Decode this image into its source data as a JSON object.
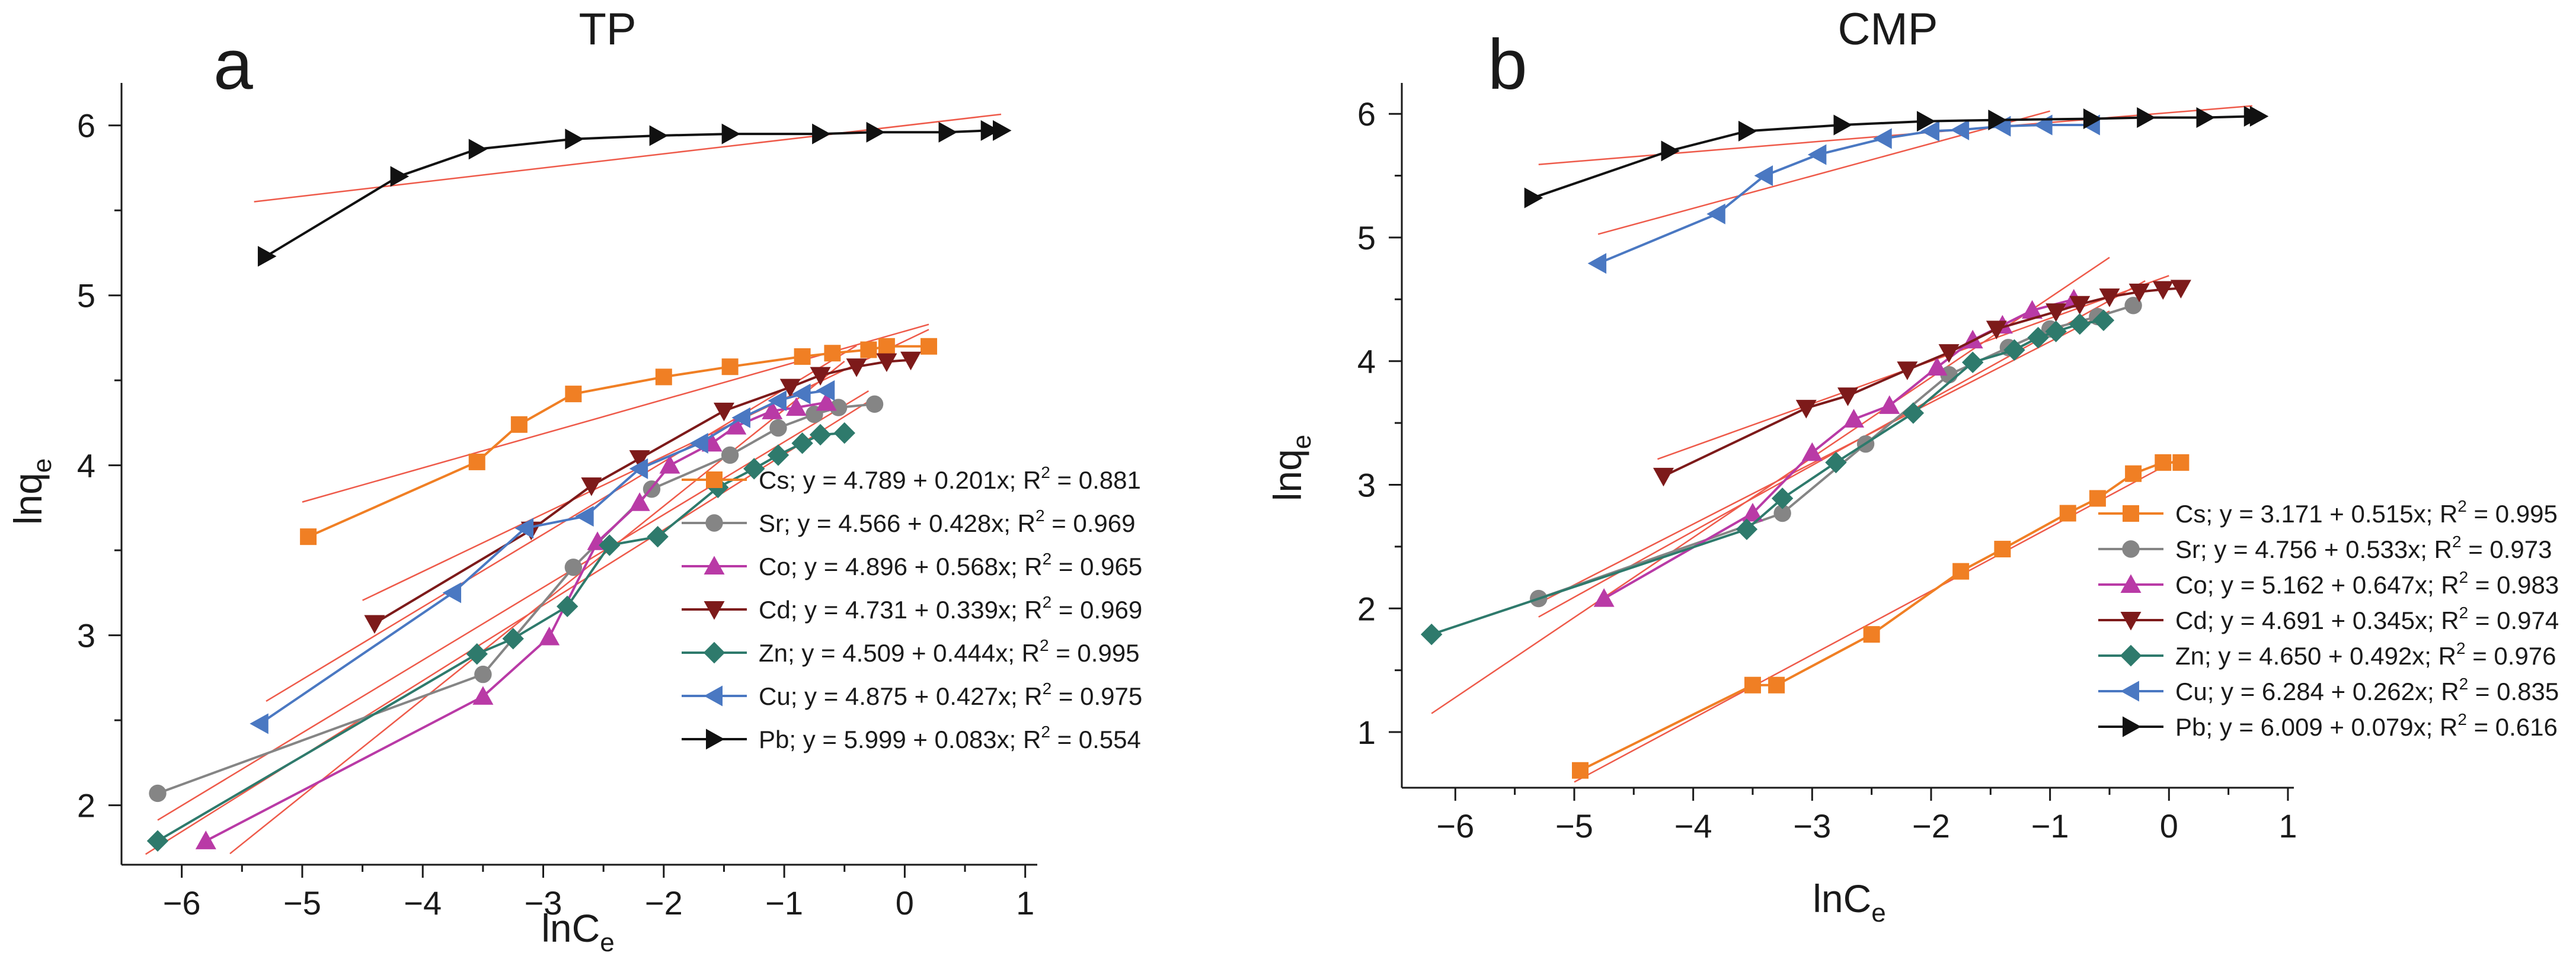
{
  "chart_data": [
    {
      "type": "line",
      "panel_letter": "a",
      "title": "TP",
      "xlabel": "lnC",
      "xlabel_sub": "e",
      "ylabel": "lnq",
      "ylabel_sub": "e",
      "xlim": [
        -6.5,
        1.1
      ],
      "ylim": [
        1.65,
        6.25
      ],
      "xticks": [
        -6,
        -5,
        -4,
        -3,
        -2,
        -1,
        0,
        1
      ],
      "xtick_labels": [
        "−6",
        "−5",
        "−4",
        "−3",
        "−2",
        "−1",
        "0",
        "1"
      ],
      "yticks": [
        2,
        3,
        4,
        5,
        6
      ],
      "ytick_labels": [
        "2",
        "3",
        "4",
        "5",
        "6"
      ],
      "legend_position": "lower-right",
      "series": [
        {
          "name": "Cs",
          "color": "#f07f24",
          "marker": "square",
          "label": "Cs; y = 4.789 + 0.201x; R",
          "label_sup": "2",
          "label_end": " = 0.881",
          "x": [
            -4.95,
            -3.55,
            -3.2,
            -2.75,
            -2.0,
            -1.45,
            -0.85,
            -0.6,
            -0.3,
            -0.15,
            0.2
          ],
          "y": [
            3.58,
            4.02,
            4.24,
            4.42,
            4.52,
            4.58,
            4.64,
            4.66,
            4.68,
            4.7,
            4.7
          ],
          "fit": {
            "intercept": 4.789,
            "slope": 0.201,
            "x_range": [
              -5.0,
              0.2
            ]
          }
        },
        {
          "name": "Sr",
          "color": "#858585",
          "marker": "circle",
          "label": "Sr; y = 4.566 + 0.428x; R",
          "label_sup": "2",
          "label_end": " = 0.969",
          "x": [
            -6.2,
            -3.5,
            -2.75,
            -2.1,
            -1.45,
            -1.05,
            -0.75,
            -0.55,
            -0.25
          ],
          "y": [
            2.07,
            2.77,
            3.4,
            3.86,
            4.06,
            4.22,
            4.3,
            4.34,
            4.36
          ],
          "fit": {
            "intercept": 4.566,
            "slope": 0.428,
            "x_range": [
              -6.2,
              -0.3
            ]
          }
        },
        {
          "name": "Co",
          "color": "#b93aa6",
          "marker": "triangle-up",
          "label": "Co; y = 4.896 + 0.568x; R",
          "label_sup": "2",
          "label_end": " = 0.965",
          "x": [
            -5.8,
            -3.5,
            -2.95,
            -2.55,
            -2.2,
            -1.95,
            -1.6,
            -1.4,
            -1.1,
            -0.9,
            -0.65
          ],
          "y": [
            1.79,
            2.64,
            2.99,
            3.55,
            3.78,
            4.0,
            4.13,
            4.23,
            4.32,
            4.34,
            4.37
          ],
          "fit": {
            "intercept": 4.896,
            "slope": 0.568,
            "x_range": [
              -5.6,
              -0.5
            ]
          }
        },
        {
          "name": "Cd",
          "color": "#7d1a1a",
          "marker": "triangle-down",
          "label": "Cd; y = 4.731 + 0.339x; R",
          "label_sup": "2",
          "label_end": " = 0.969",
          "x": [
            -4.4,
            -3.1,
            -2.6,
            -2.2,
            -1.5,
            -0.95,
            -0.7,
            -0.4,
            -0.15,
            0.05
          ],
          "y": [
            3.07,
            3.62,
            3.88,
            4.04,
            4.32,
            4.46,
            4.53,
            4.58,
            4.61,
            4.62
          ],
          "fit": {
            "intercept": 4.731,
            "slope": 0.339,
            "x_range": [
              -4.5,
              0.2
            ]
          }
        },
        {
          "name": "Zn",
          "color": "#2e7a6c",
          "marker": "diamond",
          "label": "Zn; y = 4.509 + 0.444x; R",
          "label_sup": "2",
          "label_end": " = 0.995",
          "x": [
            -6.2,
            -3.55,
            -3.25,
            -2.8,
            -2.45,
            -2.05,
            -1.55,
            -1.25,
            -1.05,
            -0.85,
            -0.7,
            -0.5
          ],
          "y": [
            1.79,
            2.89,
            2.98,
            3.17,
            3.53,
            3.58,
            3.87,
            3.98,
            4.06,
            4.13,
            4.18,
            4.19
          ],
          "fit": {
            "intercept": 4.509,
            "slope": 0.444,
            "x_range": [
              -6.3,
              -0.3
            ]
          }
        },
        {
          "name": "Cu",
          "color": "#4a78c2",
          "marker": "triangle-left",
          "label": "Cu; y = 4.875 + 0.427x; R",
          "label_sup": "2",
          "label_end": " = 0.975",
          "x": [
            -5.35,
            -3.75,
            -3.15,
            -2.65,
            -2.2,
            -1.7,
            -1.35,
            -1.05,
            -0.85,
            -0.65
          ],
          "y": [
            2.48,
            3.25,
            3.63,
            3.7,
            3.98,
            4.13,
            4.28,
            4.38,
            4.42,
            4.44
          ],
          "fit": {
            "intercept": 4.875,
            "slope": 0.427,
            "x_range": [
              -5.3,
              -0.4
            ]
          }
        },
        {
          "name": "Pb",
          "color": "#111111",
          "marker": "triangle-right",
          "label": "Pb; y = 5.999 + 0.083x; R",
          "label_sup": "2",
          "label_end": " = 0.554",
          "x": [
            -5.3,
            -4.2,
            -3.55,
            -2.75,
            -2.05,
            -1.45,
            -0.7,
            -0.25,
            0.35,
            0.7,
            0.8
          ],
          "y": [
            5.23,
            5.7,
            5.86,
            5.92,
            5.94,
            5.95,
            5.95,
            5.96,
            5.96,
            5.97,
            5.97
          ],
          "fit": {
            "intercept": 5.999,
            "slope": 0.083,
            "x_range": [
              -5.4,
              0.8
            ]
          }
        }
      ]
    },
    {
      "type": "line",
      "panel_letter": "b",
      "title": "CMP",
      "xlabel": "lnC",
      "xlabel_sub": "e",
      "ylabel": "lnq",
      "ylabel_sub": "e",
      "xlim": [
        -6.45,
        1.05
      ],
      "ylim": [
        0.55,
        6.25
      ],
      "xticks": [
        -6,
        -5,
        -4,
        -3,
        -2,
        -1,
        0,
        1
      ],
      "xtick_labels": [
        "−6",
        "−5",
        "−4",
        "−3",
        "−2",
        "−1",
        "0",
        "1"
      ],
      "yticks": [
        1,
        2,
        3,
        4,
        5,
        6
      ],
      "ytick_labels": [
        "1",
        "2",
        "3",
        "4",
        "5",
        "6"
      ],
      "legend_position": "lower-right",
      "series": [
        {
          "name": "Cs",
          "color": "#f07f24",
          "marker": "square",
          "label": "Cs; y = 3.171 + 0.515x; R",
          "label_sup": "2",
          "label_end": " = 0.995",
          "x": [
            -4.95,
            -3.5,
            -3.3,
            -2.5,
            -1.75,
            -1.4,
            -0.85,
            -0.6,
            -0.3,
            -0.05,
            0.1
          ],
          "y": [
            0.69,
            1.38,
            1.38,
            1.79,
            2.3,
            2.48,
            2.77,
            2.89,
            3.09,
            3.18,
            3.18
          ],
          "fit": {
            "intercept": 3.171,
            "slope": 0.515,
            "x_range": [
              -5.0,
              0.1
            ]
          }
        },
        {
          "name": "Sr",
          "color": "#858585",
          "marker": "circle",
          "label": "Sr; y = 4.756 + 0.533x; R",
          "label_sup": "2",
          "label_end": " = 0.973",
          "x": [
            -5.3,
            -3.25,
            -2.55,
            -1.85,
            -1.35,
            -1.0,
            -0.6,
            -0.3
          ],
          "y": [
            2.08,
            2.77,
            3.33,
            3.89,
            4.11,
            4.26,
            4.36,
            4.45
          ],
          "fit": {
            "intercept": 4.756,
            "slope": 0.533,
            "x_range": [
              -5.3,
              -0.2
            ]
          }
        },
        {
          "name": "Co",
          "color": "#b93aa6",
          "marker": "triangle-up",
          "label": "Co; y = 5.162 + 0.647x; R",
          "label_sup": "2",
          "label_end": " = 0.983",
          "x": [
            -4.75,
            -3.5,
            -3.0,
            -2.65,
            -2.35,
            -1.95,
            -1.65,
            -1.4,
            -1.15,
            -0.8
          ],
          "y": [
            2.08,
            2.77,
            3.26,
            3.53,
            3.64,
            3.95,
            4.17,
            4.29,
            4.41,
            4.5
          ],
          "fit": {
            "intercept": 5.162,
            "slope": 0.647,
            "x_range": [
              -6.2,
              -0.5
            ]
          }
        },
        {
          "name": "Cd",
          "color": "#7d1a1a",
          "marker": "triangle-down",
          "label": "Cd; y = 4.691 + 0.345x; R",
          "label_sup": "2",
          "label_end": " = 0.974",
          "x": [
            -4.25,
            -3.05,
            -2.7,
            -2.2,
            -1.85,
            -1.45,
            -0.95,
            -0.75,
            -0.5,
            -0.25,
            -0.05,
            0.1
          ],
          "y": [
            3.07,
            3.62,
            3.72,
            3.93,
            4.07,
            4.26,
            4.4,
            4.46,
            4.52,
            4.56,
            4.58,
            4.59
          ],
          "fit": {
            "intercept": 4.691,
            "slope": 0.345,
            "x_range": [
              -4.3,
              0.0
            ]
          }
        },
        {
          "name": "Zn",
          "color": "#2e7a6c",
          "marker": "diamond",
          "label": "Zn; y = 4.650 + 0.492x; R",
          "label_sup": "2",
          "label_end": " = 0.976",
          "x": [
            -6.2,
            -3.55,
            -3.25,
            -2.8,
            -2.15,
            -1.65,
            -1.3,
            -1.1,
            -0.95,
            -0.75,
            -0.55
          ],
          "y": [
            1.79,
            2.64,
            2.89,
            3.18,
            3.58,
            3.99,
            4.09,
            4.19,
            4.24,
            4.3,
            4.33
          ],
          "fit": {
            "intercept": 4.65,
            "slope": 0.492,
            "x_range": [
              -5.3,
              -0.5
            ]
          }
        },
        {
          "name": "Cu",
          "color": "#4a78c2",
          "marker": "triangle-left",
          "label": "Cu; y = 6.284 + 0.262x; R",
          "label_sup": "2",
          "label_end": " = 0.835",
          "x": [
            -4.8,
            -3.8,
            -3.4,
            -2.95,
            -2.4,
            -2.0,
            -1.75,
            -1.4,
            -1.05,
            -0.65
          ],
          "y": [
            4.79,
            5.19,
            5.5,
            5.67,
            5.8,
            5.86,
            5.87,
            5.9,
            5.91,
            5.91
          ],
          "fit": {
            "intercept": 6.284,
            "slope": 0.262,
            "x_range": [
              -4.8,
              -1.0
            ]
          }
        },
        {
          "name": "Pb",
          "color": "#111111",
          "marker": "triangle-right",
          "label": "Pb; y = 6.009 + 0.079x; R",
          "label_sup": "2",
          "label_end": " = 0.616",
          "x": [
            -5.35,
            -4.2,
            -3.55,
            -2.75,
            -2.05,
            -1.45,
            -0.65,
            -0.2,
            0.3,
            0.7,
            0.75
          ],
          "y": [
            5.32,
            5.7,
            5.86,
            5.91,
            5.94,
            5.95,
            5.96,
            5.97,
            5.97,
            5.98,
            5.98
          ],
          "fit": {
            "intercept": 6.009,
            "slope": 0.079,
            "x_range": [
              -5.3,
              0.7
            ]
          }
        }
      ]
    }
  ]
}
